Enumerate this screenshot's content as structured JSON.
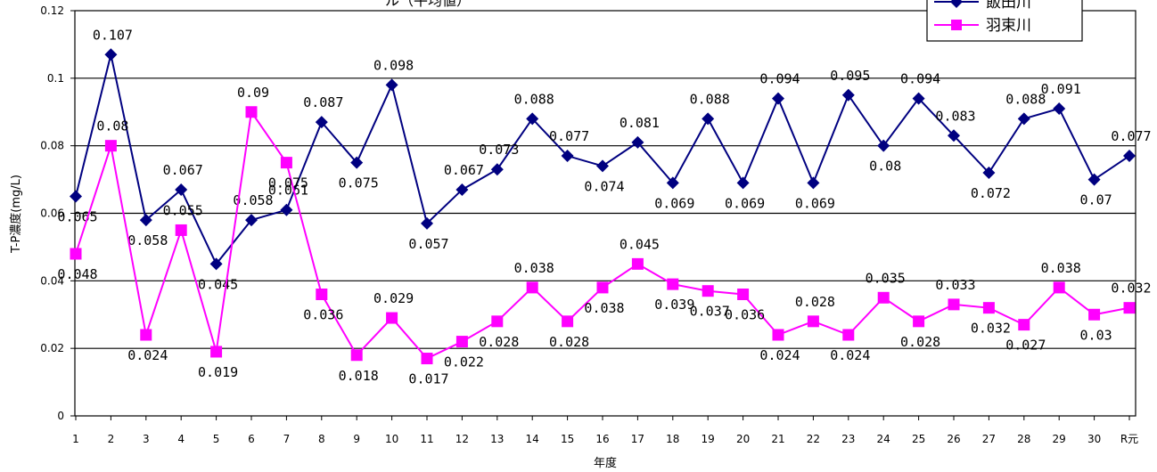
{
  "chart_data": {
    "type": "line",
    "title": "ル（平均値）",
    "xlabel": "年度",
    "ylabel": "T-P濃度(mg/L)",
    "ylim": [
      0,
      0.12
    ],
    "yticks": [
      "0",
      "0.02",
      "0.04",
      "0.06",
      "0.08",
      "0.1",
      "0.12"
    ],
    "grid": true,
    "legend_position": "top-right",
    "categories": [
      "1",
      "2",
      "3",
      "4",
      "5",
      "6",
      "7",
      "8",
      "9",
      "10",
      "11",
      "12",
      "13",
      "14",
      "15",
      "16",
      "17",
      "18",
      "19",
      "20",
      "21",
      "22",
      "23",
      "24",
      "25",
      "26",
      "27",
      "28",
      "29",
      "30",
      "R元"
    ],
    "series": [
      {
        "name": "飯田川",
        "color": "#000080",
        "marker": "diamond",
        "values": [
          0.065,
          0.107,
          0.058,
          0.067,
          0.045,
          0.058,
          0.061,
          0.087,
          0.075,
          0.098,
          0.057,
          0.067,
          0.073,
          0.088,
          0.077,
          0.074,
          0.081,
          0.069,
          0.088,
          0.069,
          0.094,
          0.069,
          0.095,
          0.08,
          0.094,
          0.083,
          0.072,
          0.088,
          0.091,
          0.07,
          0.077
        ],
        "labels": [
          "0.065",
          "0.107",
          "0.058",
          "0.067",
          "0.045",
          "0.058",
          "0.061",
          "0.087",
          "0.075",
          "0.098",
          "0.057",
          "0.067",
          "0.073",
          "0.088",
          "0.077",
          "0.074",
          "0.081",
          "0.069",
          "0.088",
          "0.069",
          "0.094",
          "0.069",
          "0.095",
          "0.08",
          "0.094",
          "0.083",
          "0.072",
          "0.088",
          "0.091",
          "0.07",
          "0.077"
        ]
      },
      {
        "name": "羽束川",
        "color": "#ff00ff",
        "marker": "square",
        "values": [
          0.048,
          0.08,
          0.024,
          0.055,
          0.019,
          0.09,
          0.075,
          0.036,
          0.018,
          0.029,
          0.017,
          0.022,
          0.028,
          0.038,
          0.028,
          0.038,
          0.045,
          0.039,
          0.037,
          0.036,
          0.024,
          0.028,
          0.024,
          0.035,
          0.028,
          0.033,
          0.032,
          0.027,
          0.038,
          0.03,
          0.032
        ],
        "labels": [
          "0.048",
          "0.08",
          "0.024",
          "0.055",
          "0.019",
          "0.09",
          "0.075",
          "0.036",
          "0.018",
          "0.029",
          "0.017",
          "0.022",
          "0.028",
          "0.038",
          "0.028",
          "0.038",
          "0.045",
          "0.039",
          "0.037",
          "0.036",
          "0.024",
          "0.028",
          "0.024",
          "0.035",
          "0.028",
          "0.033",
          "0.032",
          "0.027",
          "0.038",
          "0.03",
          "0.032"
        ]
      }
    ]
  }
}
